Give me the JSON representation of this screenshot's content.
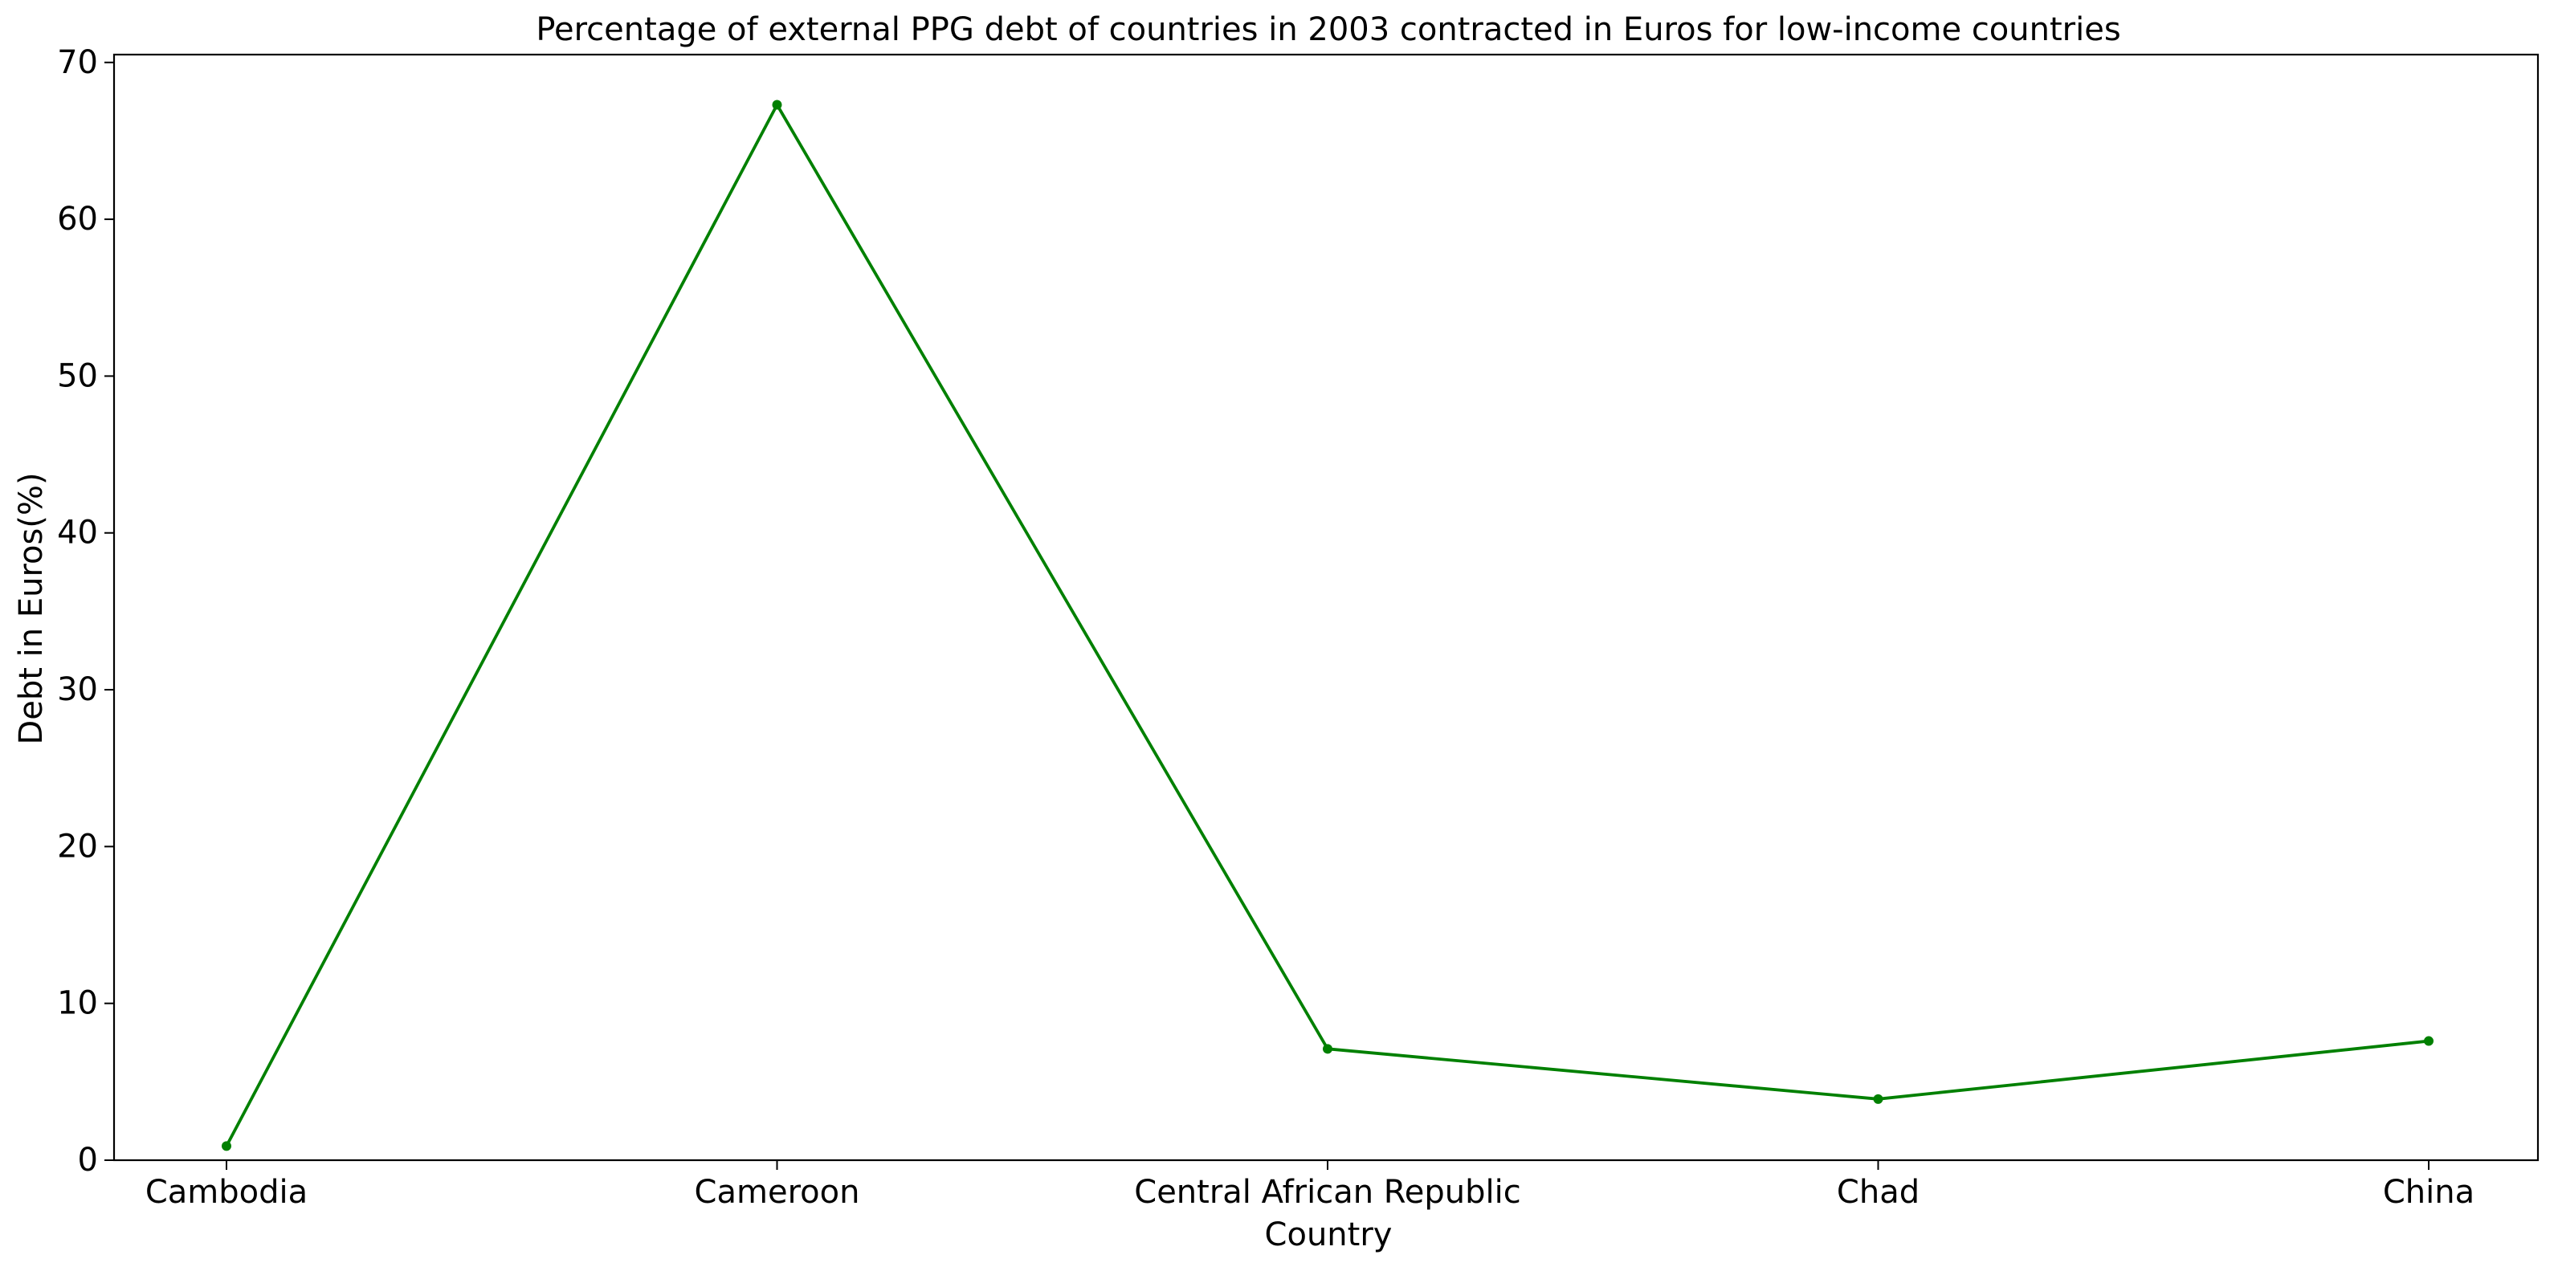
{
  "chart_data": {
    "type": "line",
    "title": "Percentage of external PPG debt of countries in 2003 contracted in Euros for low-income countries",
    "xlabel": "Country",
    "ylabel": "Debt in Euros(%)",
    "categories": [
      "Cambodia",
      "Cameroon",
      "Central African Republic",
      "Chad",
      "China"
    ],
    "series": [
      {
        "values": [
          0.9,
          67.3,
          7.1,
          3.9,
          7.6
        ],
        "color": "#008000",
        "marker": "circle"
      }
    ],
    "ylim": [
      0,
      70.5
    ],
    "yticks": [
      0,
      10,
      20,
      30,
      40,
      50,
      60,
      70
    ],
    "grid": false,
    "legend": "none"
  }
}
